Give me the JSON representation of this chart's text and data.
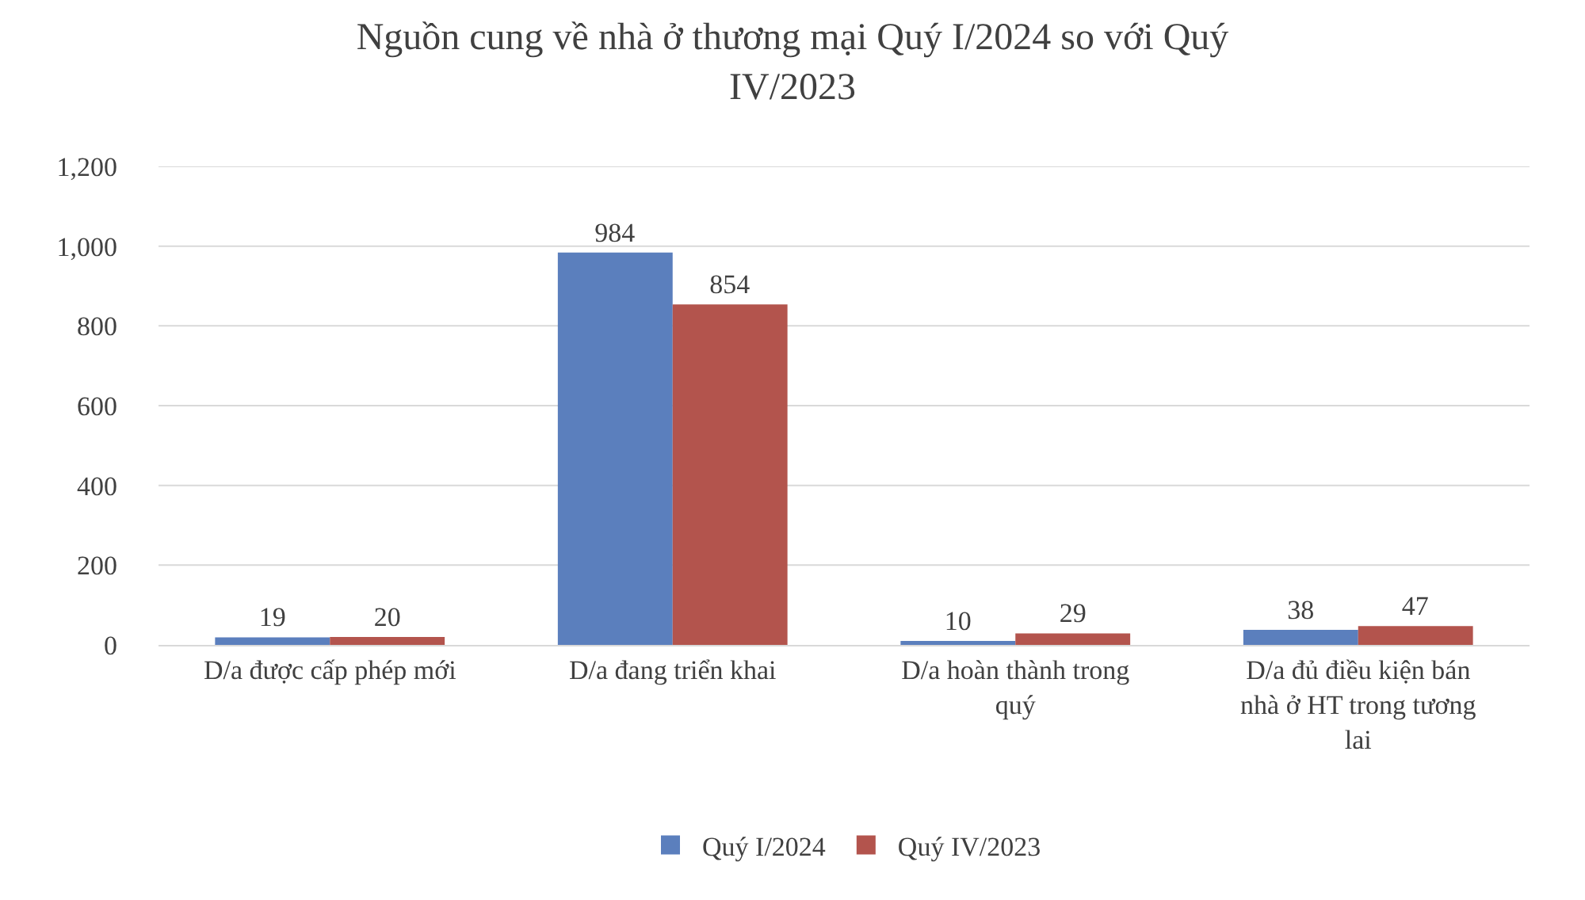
{
  "chart_data": {
    "type": "bar",
    "title": "Nguồn cung về nhà ở thương mại Quý I/2024 so với Quý IV/2023",
    "categories": [
      "D/a được cấp phép mới",
      "D/a đang triển khai",
      "D/a hoàn thành trong quý",
      "D/a đủ điều kiện bán nhà ở HT trong tương lai"
    ],
    "series": [
      {
        "name": "Quý I/2024",
        "color": "#5b7fbd",
        "values": [
          19,
          984,
          10,
          38
        ]
      },
      {
        "name": "Quý IV/2023",
        "color": "#b3544d",
        "values": [
          20,
          854,
          29,
          47
        ]
      }
    ],
    "ylim": [
      0,
      1200
    ],
    "yticks": [
      0,
      200,
      400,
      600,
      800,
      {
        "value": 1000,
        "label": "1,000"
      },
      {
        "value": 1200,
        "label": "1,200"
      }
    ],
    "grid": "y",
    "legend": "bottom",
    "data_labels": true
  }
}
